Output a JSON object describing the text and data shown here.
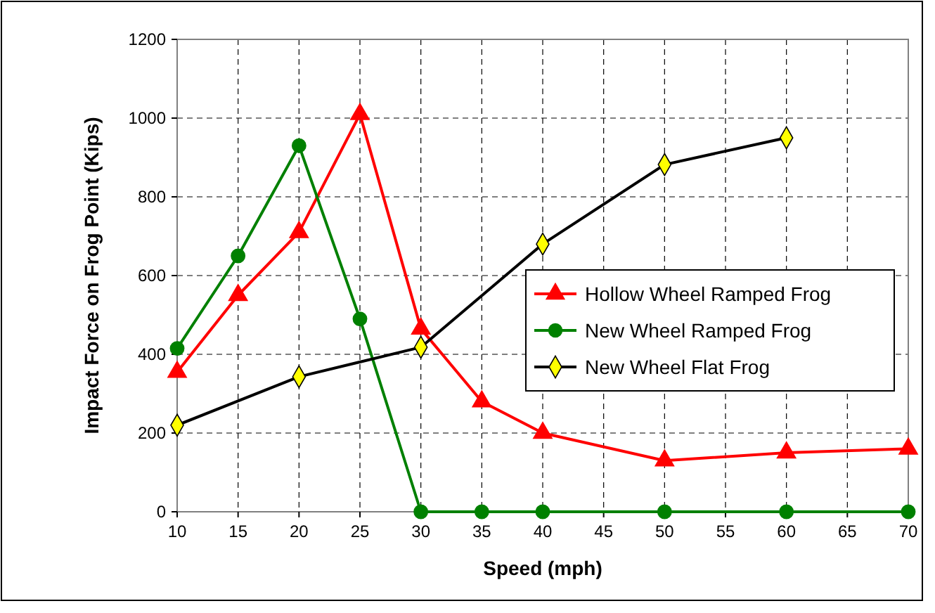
{
  "chart_data": {
    "type": "line",
    "xlabel": "Speed (mph)",
    "ylabel": "Impact Force on Frog Point (Kips)",
    "xlim": [
      10,
      70
    ],
    "xticks": [
      10,
      15,
      20,
      25,
      30,
      35,
      40,
      45,
      50,
      55,
      60,
      65,
      70
    ],
    "ylim": [
      0,
      1200
    ],
    "yticks": [
      0,
      200,
      400,
      600,
      800,
      1000,
      1200
    ],
    "grid": true,
    "legend": "right",
    "line_style": "solid",
    "series": [
      {
        "name": "Hollow Wheel Ramped Frog",
        "color": "#ff0000",
        "marker": "triangle",
        "x": [
          10,
          15,
          20,
          25,
          30,
          35,
          40,
          50,
          60,
          70
        ],
        "values": [
          355,
          550,
          710,
          1010,
          465,
          280,
          200,
          130,
          150,
          160
        ]
      },
      {
        "name": "New Wheel Ramped Frog",
        "color": "#008000",
        "marker": "circle",
        "x": [
          10,
          15,
          20,
          25,
          30,
          35,
          40,
          50,
          60,
          70
        ],
        "values": [
          415,
          650,
          930,
          490,
          0,
          0,
          0,
          0,
          0,
          0
        ]
      },
      {
        "name": "New Wheel Flat Frog",
        "color": "#000000",
        "marker": "diamond",
        "colors": [
          "#ffff00",
          "#ffff00",
          "#ffff00",
          "#ffff00",
          "#ffff00",
          "#ffff00"
        ],
        "x": [
          10,
          20,
          30,
          40,
          50,
          60
        ],
        "values": [
          220,
          343,
          418,
          680,
          882,
          950
        ]
      }
    ]
  }
}
